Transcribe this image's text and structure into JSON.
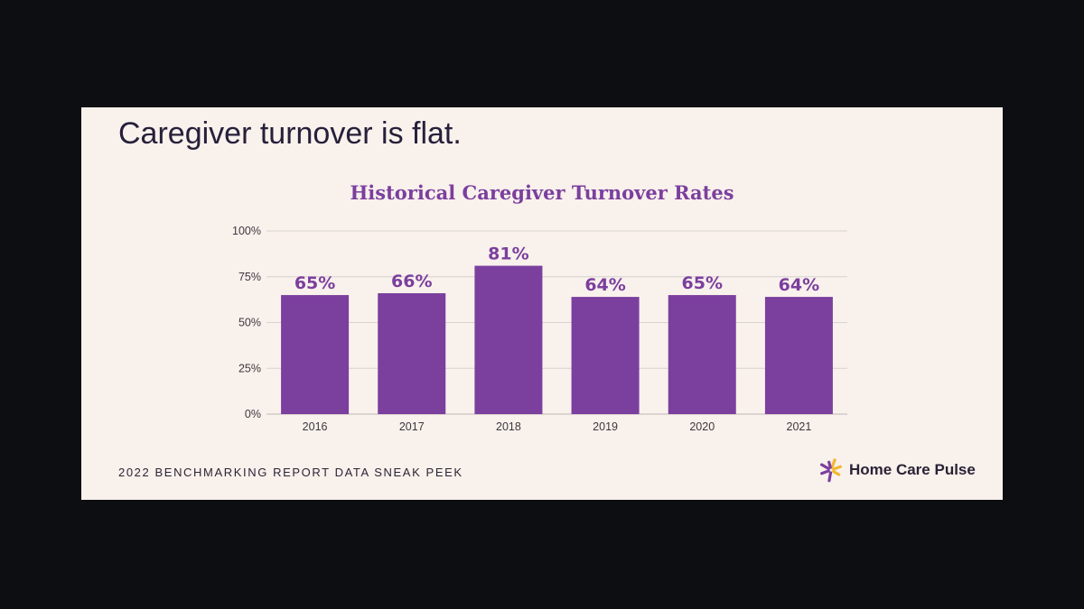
{
  "slide": {
    "headline": "Caregiver turnover is flat.",
    "footer_text": "2022 BENCHMARKING REPORT DATA SNEAK PEEK",
    "brand_name": "Home Care Pulse",
    "brand_logo_icon": "burst-logo-icon"
  },
  "colors": {
    "bar": "#7b3f9e",
    "label": "#7b3f9e",
    "grid": "#d8d2d0",
    "axis_text": "#3d3840",
    "logo_yellow": "#f2b632",
    "logo_purple": "#7b3f9e"
  },
  "chart_data": {
    "type": "bar",
    "title": "Historical Caregiver Turnover Rates",
    "xlabel": "",
    "ylabel": "",
    "categories": [
      "2016",
      "2017",
      "2018",
      "2019",
      "2020",
      "2021"
    ],
    "values": [
      65,
      66,
      81,
      64,
      65,
      64
    ],
    "data_labels": [
      "65%",
      "66%",
      "81%",
      "64%",
      "65%",
      "64%"
    ],
    "ylim": [
      0,
      100
    ],
    "yticks": [
      0,
      25,
      50,
      75,
      100
    ],
    "ytick_labels": [
      "0%",
      "25%",
      "50%",
      "75%",
      "100%"
    ],
    "grid": true,
    "legend": "none"
  }
}
